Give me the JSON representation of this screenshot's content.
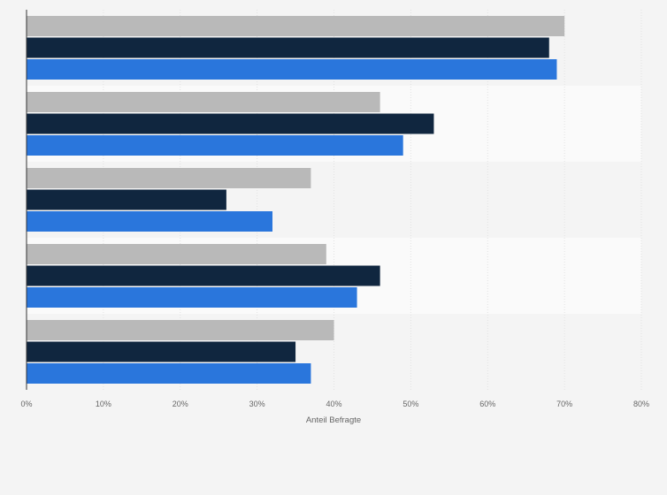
{
  "chart_data": {
    "type": "bar",
    "orientation": "horizontal",
    "categories": [
      "",
      "",
      "",
      "",
      ""
    ],
    "series": [
      {
        "color": "#b9b9b9",
        "values": [
          70,
          46,
          37,
          39,
          40
        ]
      },
      {
        "color": "#10263f",
        "values": [
          68,
          53,
          26,
          46,
          35
        ]
      },
      {
        "color": "#2a76dc",
        "values": [
          69,
          49,
          32,
          43,
          37
        ]
      }
    ],
    "xlabel": "Anteil Befragte",
    "ylabel": "",
    "xlim": [
      0,
      80
    ],
    "xticks": [
      0,
      10,
      20,
      30,
      40,
      50,
      60,
      70,
      80
    ],
    "tick_suffix": "%",
    "grid": true,
    "legend": false
  }
}
